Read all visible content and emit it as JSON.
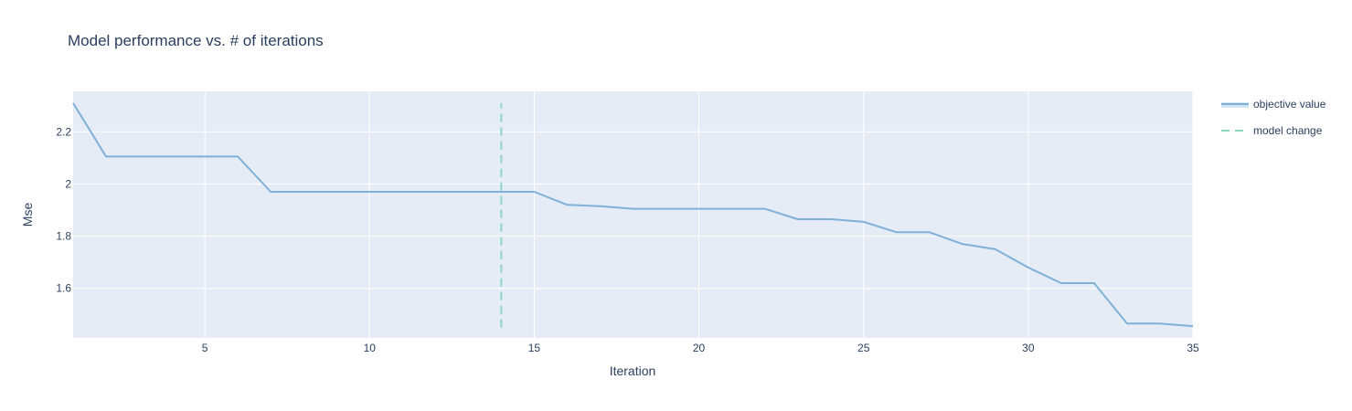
{
  "chart_data": {
    "type": "line",
    "title": "Model performance vs. # of iterations",
    "xlabel": "Iteration",
    "ylabel": "Mse",
    "xlim": [
      1,
      35
    ],
    "ylim": [
      1.41,
      2.355
    ],
    "xticks": [
      5,
      10,
      15,
      20,
      25,
      30,
      35
    ],
    "yticks": [
      1.6,
      1.8,
      2,
      2.2
    ],
    "ytick_labels": [
      "1.6",
      "1.8",
      "2",
      "2.2"
    ],
    "grid": true,
    "legend_position": "top-right",
    "series": [
      {
        "name": "objective value",
        "color": "#7fb1d8",
        "style": "solid",
        "x": [
          1,
          2,
          3,
          4,
          5,
          6,
          7,
          8,
          9,
          10,
          11,
          12,
          13,
          14,
          15,
          16,
          17,
          18,
          19,
          20,
          21,
          22,
          23,
          24,
          25,
          26,
          27,
          28,
          29,
          30,
          31,
          32,
          33,
          34,
          35
        ],
        "y": [
          2.31,
          2.105,
          2.105,
          2.105,
          2.105,
          2.105,
          1.97,
          1.97,
          1.97,
          1.97,
          1.97,
          1.97,
          1.97,
          1.97,
          1.97,
          1.92,
          1.915,
          1.905,
          1.905,
          1.905,
          1.905,
          1.905,
          1.865,
          1.865,
          1.855,
          1.815,
          1.815,
          1.77,
          1.75,
          1.68,
          1.62,
          1.62,
          1.465,
          1.465,
          1.455
        ]
      },
      {
        "name": "model change",
        "color": "#8ed6c4",
        "style": "dashed",
        "x": [
          14,
          14
        ],
        "y": [
          1.45,
          2.31
        ]
      }
    ]
  }
}
